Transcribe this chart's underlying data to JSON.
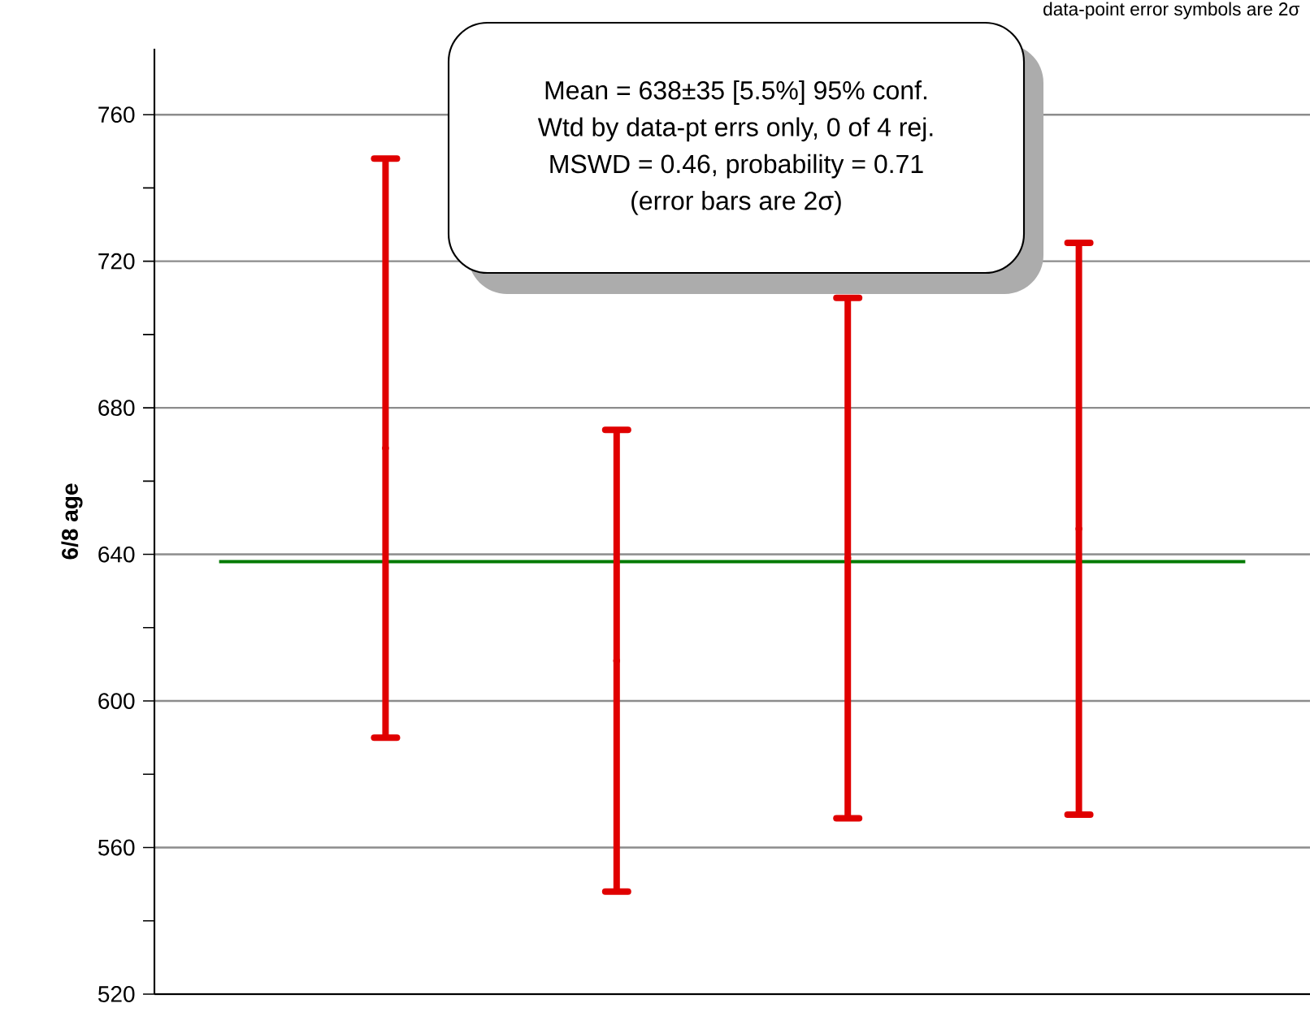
{
  "chart_data": {
    "type": "scatter",
    "ylabel": "6/8 age",
    "categories": [
      null,
      null,
      null,
      null
    ],
    "series": [
      {
        "color": "#e00000",
        "values": [
          669,
          611,
          639,
          647
        ],
        "errors": [
          79,
          63,
          71,
          78
        ]
      }
    ],
    "ylim": [
      520,
      778
    ],
    "yticks": [
      520,
      {
        "value": 540,
        "label": null
      },
      560,
      {
        "value": 580,
        "label": null
      },
      600,
      {
        "value": 620,
        "label": null
      },
      640,
      {
        "value": 660,
        "label": null
      },
      680,
      {
        "value": 700,
        "label": null
      },
      720,
      {
        "value": 740,
        "label": null
      },
      760
    ],
    "grid": "y",
    "ref_lines": [
      {
        "axis": "y",
        "value": 638,
        "color": "#007a00"
      }
    ],
    "annotations": [
      "Mean = 638±35  [5.5%]  95% conf.",
      "Wtd by data-pt errs only, 0 of 4 rej.",
      "MSWD = 0.46, probability = 0.71",
      "(error bars are 2σ)",
      "data-point error symbols are 2σ"
    ]
  }
}
